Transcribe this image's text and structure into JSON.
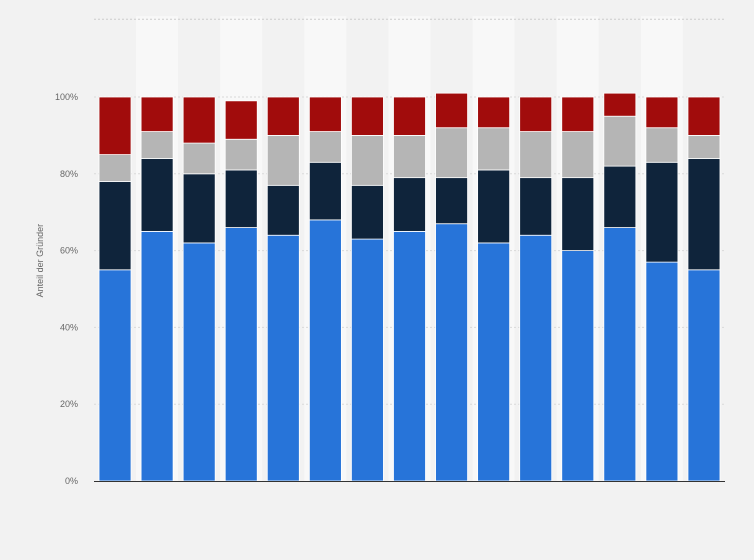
{
  "chart_data": {
    "type": "bar",
    "stacked": true,
    "title": "",
    "xlabel": "",
    "ylabel": "Anteil der Gründer",
    "ylim": [
      0,
      120
    ],
    "y_tick_values": [
      0,
      20,
      40,
      60,
      80,
      100
    ],
    "y_tick_labels": [
      "0%",
      "20%",
      "40%",
      "60%",
      "80%",
      "100%"
    ],
    "grid": true,
    "legend": "none",
    "categories": [
      "",
      "",
      "",
      "",
      "",
      "",
      "",
      "",
      "",
      "",
      "",
      "",
      "",
      "",
      ""
    ],
    "series": [
      {
        "color": "#2774d9",
        "values": [
          55,
          65,
          62,
          66,
          64,
          68,
          63,
          65,
          67,
          62,
          64,
          60,
          66,
          57,
          55
        ]
      },
      {
        "color": "#0f243b",
        "values": [
          23,
          19,
          18,
          15,
          13,
          15,
          14,
          14,
          12,
          19,
          15,
          19,
          16,
          26,
          29
        ]
      },
      {
        "color": "#b5b5b5",
        "values": [
          7,
          7,
          8,
          8,
          13,
          8,
          13,
          11,
          13,
          11,
          12,
          12,
          13,
          9,
          6
        ]
      },
      {
        "color": "#a10c0c",
        "values": [
          15,
          9,
          12,
          10,
          10,
          9,
          10,
          10,
          9,
          8,
          9,
          9,
          6,
          8,
          10
        ]
      }
    ]
  }
}
